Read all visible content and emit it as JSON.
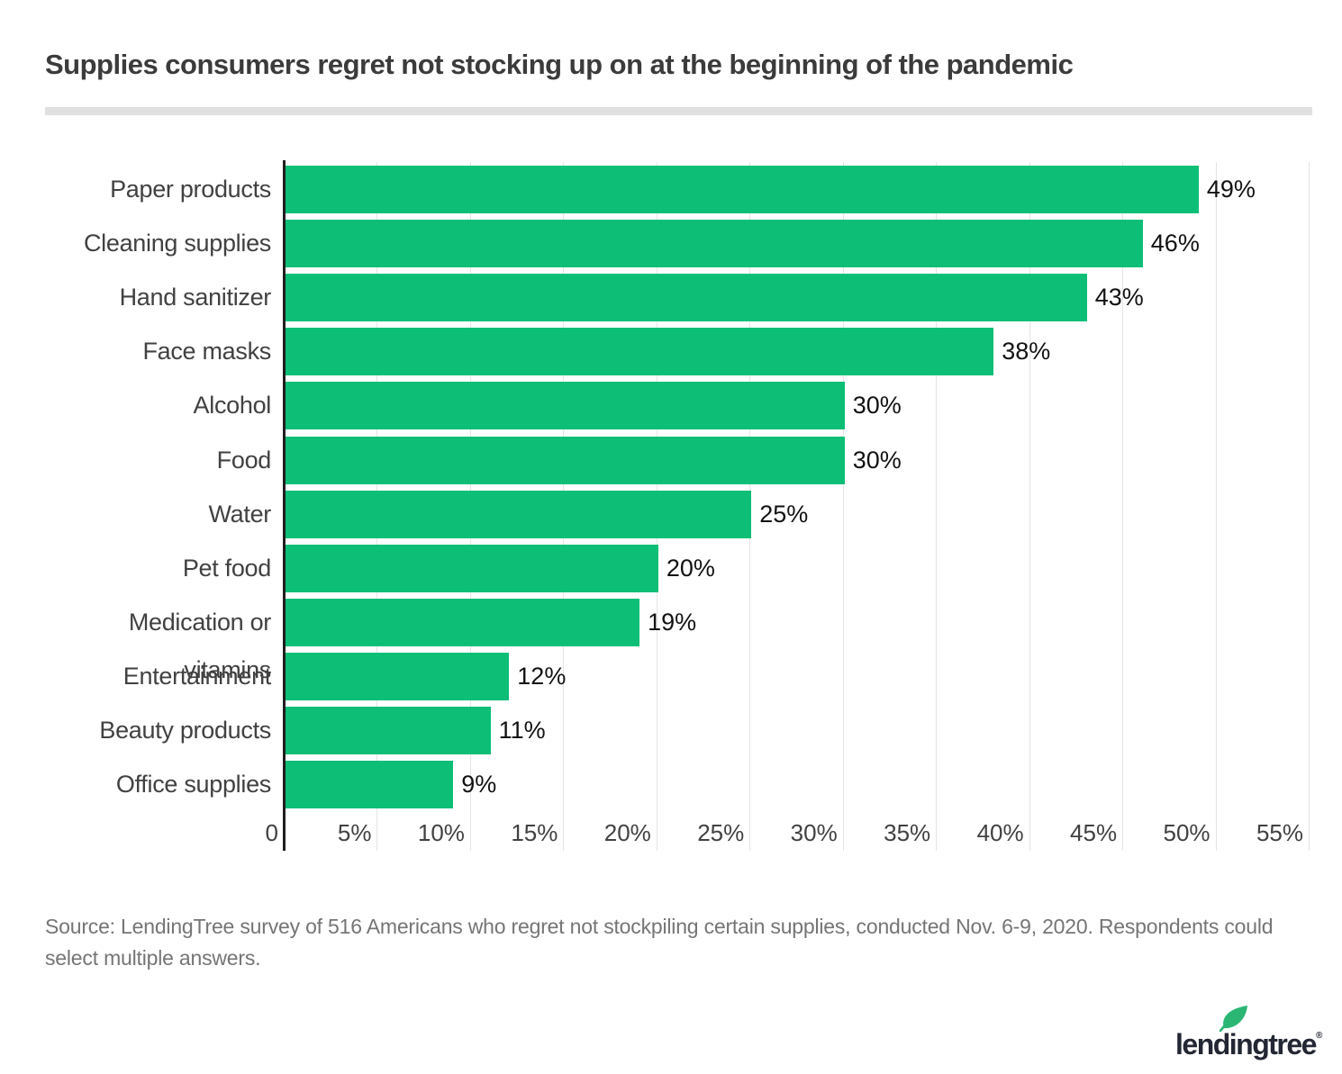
{
  "title": "Supplies consumers regret not stocking up on at the beginning of the pandemic",
  "chart_data": {
    "type": "bar",
    "orientation": "horizontal",
    "title": "Supplies consumers regret not stocking up on at the beginning of the pandemic",
    "categories": [
      "Paper products",
      "Cleaning supplies",
      "Hand sanitizer",
      "Face masks",
      "Alcohol",
      "Food",
      "Water",
      "Pet food",
      "Medication or vitamins",
      "Entertainment",
      "Beauty products",
      "Office supplies"
    ],
    "values": [
      49,
      46,
      43,
      38,
      30,
      30,
      25,
      20,
      19,
      12,
      11,
      9
    ],
    "value_labels": [
      "49%",
      "46%",
      "43%",
      "38%",
      "30%",
      "30%",
      "25%",
      "20%",
      "19%",
      "12%",
      "11%",
      "9%"
    ],
    "xlabel": "",
    "ylabel": "",
    "xlim": [
      0,
      55
    ],
    "x_ticks": [
      0,
      5,
      10,
      15,
      20,
      25,
      30,
      35,
      40,
      45,
      50,
      55
    ],
    "x_tick_labels": [
      "0",
      "5%",
      "10%",
      "15%",
      "20%",
      "25%",
      "30%",
      "35%",
      "40%",
      "45%",
      "50%",
      "55%"
    ],
    "grid": "vertical",
    "legend": "none",
    "bar_color": "#0dbe77",
    "axis_color": "#1f1f1f",
    "grid_color": "#e4e4e4"
  },
  "source": {
    "text": "Source: LendingTree survey of 516 Americans who regret not stockpiling certain supplies, conducted Nov. 6-9, 2020. Respondents could select multiple answers."
  },
  "logo": {
    "text": "lendingtree",
    "registered": "®",
    "leaf_color": "#2bb673",
    "text_color": "#232733"
  }
}
